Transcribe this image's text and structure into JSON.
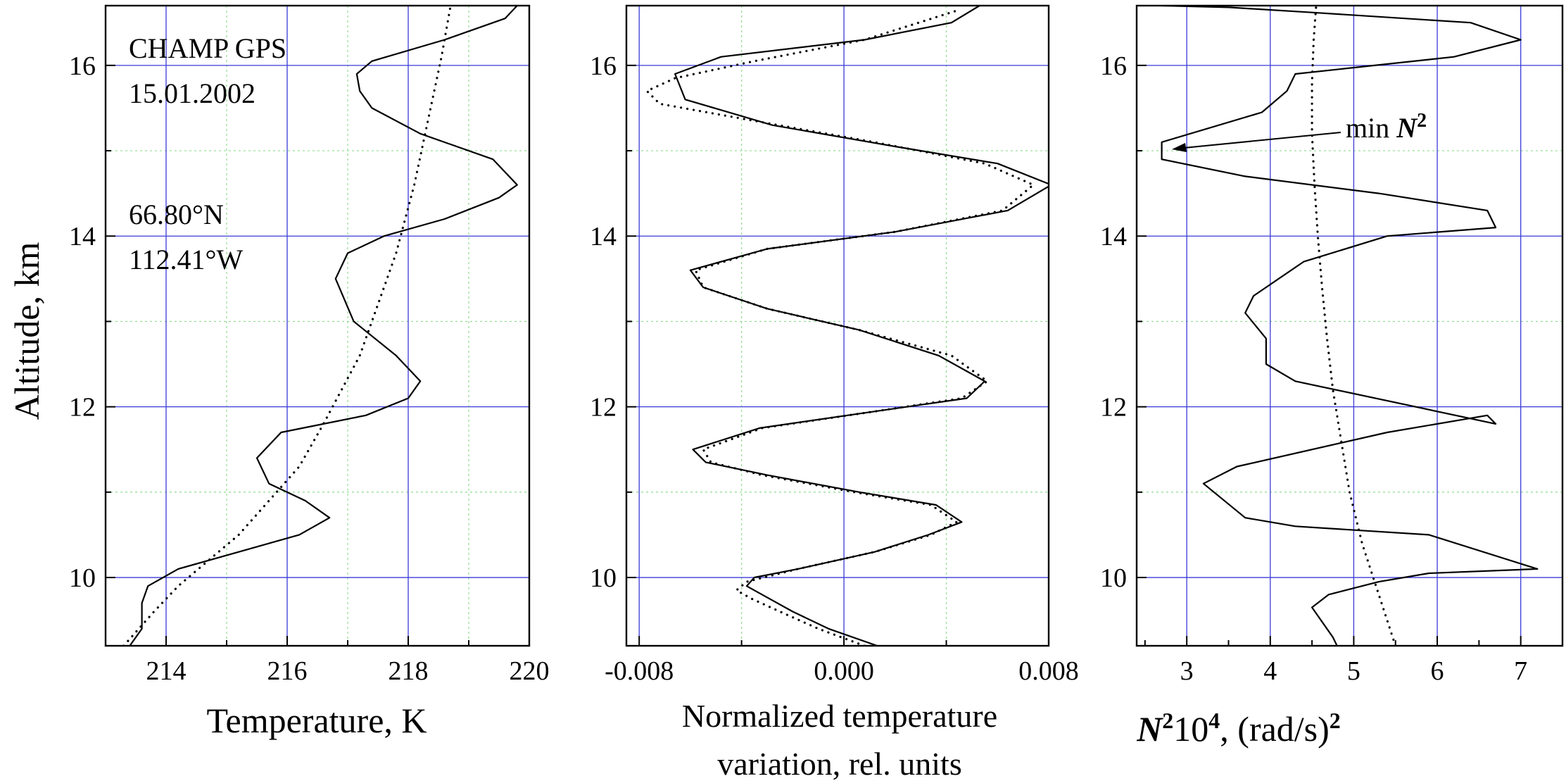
{
  "chart_data": [
    {
      "type": "line",
      "xlabel": "Temperature, K",
      "ylabel": "Altitude, km",
      "xlim": [
        213,
        220
      ],
      "ylim": [
        9.2,
        16.7
      ],
      "xticks": [
        214,
        216,
        218,
        220
      ],
      "yticks": [
        10,
        12,
        14,
        16
      ],
      "grid": true,
      "annotations": [
        "CHAMP GPS",
        "15.01.2002",
        "66.80°N",
        "112.41°W"
      ],
      "series": [
        {
          "style": "solid",
          "x": [
            213.4,
            213.6,
            213.6,
            213.7,
            214.2,
            215.2,
            216.2,
            216.7,
            216.3,
            215.7,
            215.5,
            215.9,
            217.3,
            218.0,
            218.2,
            217.8,
            217.1,
            216.8,
            217.0,
            217.6,
            218.6,
            219.5,
            219.8,
            219.4,
            218.2,
            217.4,
            217.2,
            217.15,
            217.4,
            218.6,
            219.6,
            219.8
          ],
          "y": [
            9.2,
            9.4,
            9.7,
            9.9,
            10.1,
            10.3,
            10.5,
            10.7,
            10.9,
            11.1,
            11.4,
            11.7,
            11.9,
            12.1,
            12.3,
            12.6,
            13.0,
            13.5,
            13.8,
            14.0,
            14.2,
            14.45,
            14.6,
            14.9,
            15.2,
            15.5,
            15.7,
            15.9,
            16.05,
            16.3,
            16.55,
            16.7
          ]
        },
        {
          "style": "dotted",
          "x": [
            213.3,
            213.8,
            214.2,
            214.7,
            215.2,
            215.7,
            216.2,
            216.6,
            216.9,
            217.2,
            217.4,
            217.6,
            217.8,
            217.95,
            218.1,
            218.25,
            218.4,
            218.55,
            218.7
          ],
          "y": [
            9.2,
            9.6,
            9.9,
            10.2,
            10.5,
            10.9,
            11.3,
            11.8,
            12.2,
            12.6,
            13.0,
            13.4,
            13.8,
            14.2,
            14.6,
            15.1,
            15.6,
            16.1,
            16.7
          ]
        }
      ]
    },
    {
      "type": "line",
      "xlabel": "Normalized temperature variation, rel. units",
      "xlabel_line1": "Normalized temperature",
      "xlabel_line2": "variation, rel. units",
      "ylabel": "",
      "xlim": [
        -0.0085,
        0.008
      ],
      "ylim": [
        9.2,
        16.7
      ],
      "xticks": [
        -0.008,
        0.0,
        0.008
      ],
      "xtick_labels": [
        "-0.008",
        "0.000",
        "0.008"
      ],
      "yticks": [
        10,
        12,
        14,
        16
      ],
      "grid": true,
      "series": [
        {
          "style": "solid",
          "x": [
            0.0013,
            -0.0006,
            -0.002,
            -0.0032,
            -0.0038,
            -0.0035,
            -0.0018,
            0.0012,
            0.0033,
            0.0046,
            0.0036,
            0.0006,
            -0.003,
            -0.0054,
            -0.0059,
            -0.0033,
            0.0013,
            0.0048,
            0.0055,
            0.0037,
            0.0006,
            -0.003,
            -0.0055,
            -0.006,
            -0.003,
            0.002,
            0.0064,
            0.0081,
            0.006,
            0.002,
            -0.0028,
            -0.0062,
            -0.0066,
            -0.0048,
            0.0008,
            0.0042,
            0.0053
          ],
          "y": [
            9.2,
            9.4,
            9.6,
            9.8,
            9.9,
            10.0,
            10.1,
            10.3,
            10.5,
            10.65,
            10.85,
            11.0,
            11.2,
            11.35,
            11.5,
            11.75,
            11.95,
            12.1,
            12.3,
            12.6,
            12.9,
            13.15,
            13.4,
            13.6,
            13.85,
            14.05,
            14.3,
            14.6,
            14.85,
            15.05,
            15.3,
            15.6,
            15.9,
            16.1,
            16.3,
            16.5,
            16.7
          ]
        },
        {
          "style": "dotted",
          "x": [
            0.0008,
            -0.001,
            -0.0025,
            -0.0036,
            -0.0042,
            -0.0038,
            -0.0018,
            0.0012,
            0.0034,
            0.0044,
            0.0034,
            0.0004,
            -0.0032,
            -0.0052,
            -0.0055,
            -0.0032,
            0.0013,
            0.0046,
            0.0056,
            0.0042,
            0.0006,
            -0.003,
            -0.0055,
            -0.0058,
            -0.003,
            0.002,
            0.0062,
            0.0074,
            0.0055,
            0.0012,
            -0.0035,
            -0.0072,
            -0.0077,
            -0.0066,
            -0.0035,
            0.0008,
            0.0045
          ],
          "y": [
            9.2,
            9.4,
            9.6,
            9.75,
            9.85,
            9.95,
            10.1,
            10.3,
            10.5,
            10.65,
            10.85,
            11.0,
            11.2,
            11.35,
            11.5,
            11.75,
            11.95,
            12.1,
            12.3,
            12.6,
            12.9,
            13.15,
            13.4,
            13.6,
            13.85,
            14.05,
            14.3,
            14.6,
            14.85,
            15.1,
            15.35,
            15.55,
            15.7,
            15.85,
            16.05,
            16.3,
            16.65
          ]
        }
      ]
    },
    {
      "type": "line",
      "xlabel": "N²10⁴, (rad/s)²",
      "xlabel_parts": {
        "n": "N",
        "sup2": "2",
        "ten": "10",
        "sup4": "4",
        "units": ", (rad/s)",
        "sup_units": "2"
      },
      "ylabel": "",
      "xlim": [
        2.4,
        7.5
      ],
      "ylim": [
        9.2,
        16.7
      ],
      "xticks": [
        3,
        4,
        5,
        6,
        7
      ],
      "yticks": [
        10,
        12,
        14,
        16
      ],
      "grid": true,
      "annotation": {
        "text": "min",
        "symbol": "N",
        "sup": "2"
      },
      "series": [
        {
          "style": "solid",
          "x": [
            4.8,
            4.75,
            4.5,
            4.7,
            5.3,
            5.9,
            7.2,
            5.9,
            4.3,
            3.7,
            3.2,
            3.6,
            5.4,
            6.6,
            6.7,
            4.3,
            3.95,
            3.95,
            3.7,
            3.8,
            4.4,
            5.4,
            6.7,
            6.6,
            5.3,
            3.7,
            2.7,
            2.7,
            3.9,
            4.2,
            4.3,
            6.2,
            7.0,
            6.4,
            4.5,
            3.5,
            2.7
          ],
          "y": [
            9.2,
            9.3,
            9.65,
            9.8,
            9.95,
            10.05,
            10.1,
            10.5,
            10.6,
            10.7,
            11.1,
            11.3,
            11.7,
            11.9,
            11.8,
            12.3,
            12.5,
            12.8,
            13.1,
            13.3,
            13.7,
            14.0,
            14.1,
            14.3,
            14.5,
            14.7,
            14.9,
            15.1,
            15.45,
            15.7,
            15.9,
            16.1,
            16.3,
            16.5,
            16.62,
            16.68,
            16.7
          ]
        },
        {
          "style": "dotted",
          "x": [
            5.5,
            5.3,
            5.1,
            4.95,
            4.85,
            4.75,
            4.68,
            4.62,
            4.57,
            4.53,
            4.5,
            4.5,
            4.52,
            4.55
          ],
          "y": [
            9.2,
            9.8,
            10.4,
            11.0,
            11.6,
            12.2,
            12.8,
            13.4,
            14.0,
            14.6,
            15.2,
            15.8,
            16.3,
            16.7
          ]
        }
      ]
    }
  ]
}
